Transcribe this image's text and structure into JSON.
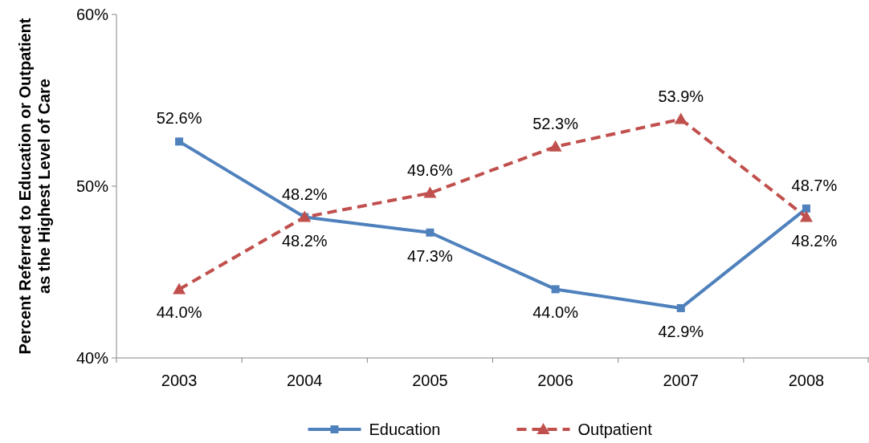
{
  "chart_data": {
    "type": "line",
    "ylabel": "Percent Referred to Education or Outpatient as the Highest Level of Care",
    "categories": [
      "2003",
      "2004",
      "2005",
      "2006",
      "2007",
      "2008"
    ],
    "series": [
      {
        "name": "Education",
        "color": "#4f81bd",
        "marker": "square",
        "line_style": "solid",
        "values": [
          52.6,
          48.2,
          47.3,
          44.0,
          42.9,
          48.7
        ],
        "value_labels": [
          "52.6%",
          "48.2%",
          "47.3%",
          "44.0%",
          "42.9%",
          "48.7%"
        ]
      },
      {
        "name": "Outpatient",
        "color": "#c0504d",
        "marker": "triangle",
        "line_style": "dashed",
        "values": [
          44.0,
          48.2,
          49.6,
          52.3,
          53.9,
          48.2
        ],
        "value_labels": [
          "44.0%",
          "48.2%",
          "49.6%",
          "52.3%",
          "53.9%",
          "48.2%"
        ]
      }
    ],
    "ylim": [
      40,
      60
    ],
    "yticks": [
      {
        "value": 40,
        "label": "40%"
      },
      {
        "value": 50,
        "label": "50%"
      },
      {
        "value": 60,
        "label": "60%"
      }
    ],
    "legend": "bottom"
  }
}
